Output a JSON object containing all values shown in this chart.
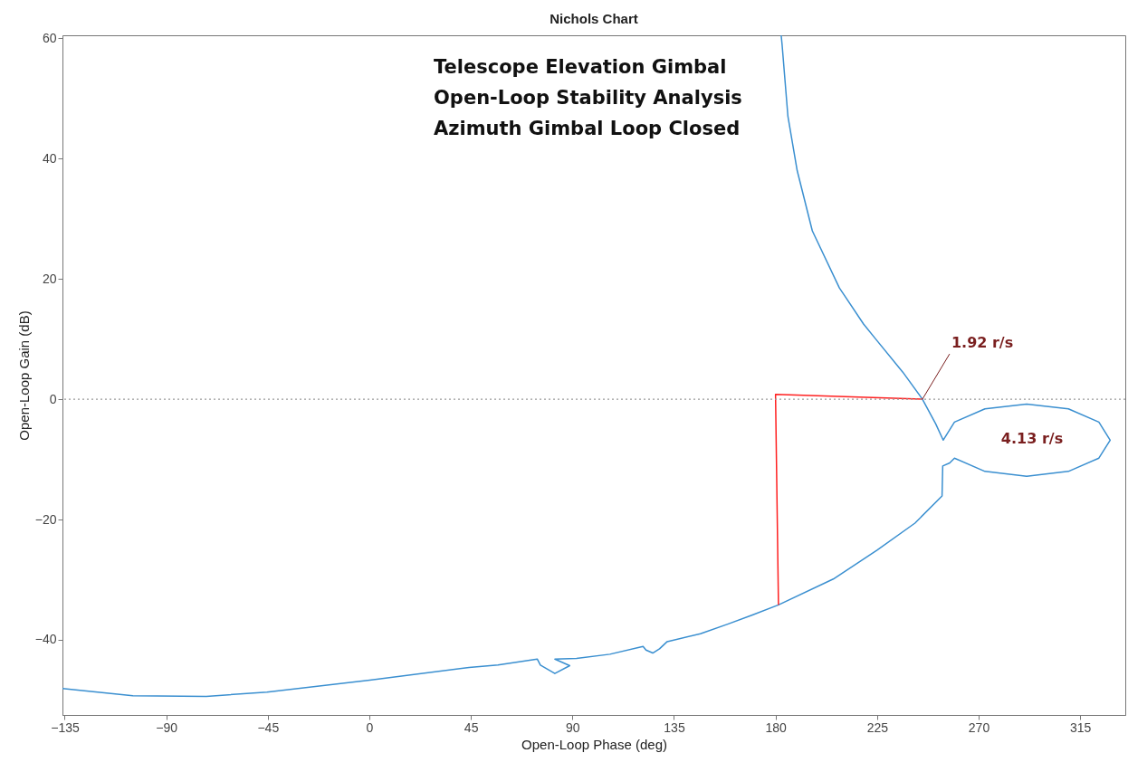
{
  "chart_data": {
    "type": "line",
    "title": "Nichols Chart",
    "xlabel": "Open-Loop Phase (deg)",
    "ylabel": "Open-Loop Gain (dB)",
    "xlim": [
      -136,
      335
    ],
    "ylim": [
      -52.5,
      60.5
    ],
    "xticks": [
      -135,
      -90,
      -45,
      0,
      45,
      90,
      135,
      180,
      225,
      270,
      315
    ],
    "yticks": [
      -40,
      -20,
      0,
      20,
      40,
      60
    ],
    "grid": false,
    "marker": "none",
    "line_style": "solid",
    "series": [
      {
        "color": "#3a8fd0",
        "x": [
          -136,
          -104.8,
          -72.3,
          -45.4,
          0.2,
          44.2,
          57,
          74.4,
          75.8,
          82.2,
          88.8,
          82.2,
          91.8,
          106.6,
          121.3,
          122.6,
          125.6,
          128.6,
          132,
          146.7,
          158.8,
          169.5,
          181.3,
          205.6,
          225,
          241.8,
          253.8,
          254.1,
          257.2,
          259.3,
          272.8,
          291.3,
          309.8,
          323.3,
          328.3,
          323.3,
          309.8,
          291.3,
          272.8,
          259.3,
          254.3,
          251,
          245.1,
          236.4,
          224.4,
          219,
          211,
          208.3,
          196.3,
          189.6,
          185.5,
          182.9,
          182.5
        ],
        "values": [
          -48.1,
          -49.3,
          -49.4,
          -48.7,
          -46.7,
          -44.6,
          -44.2,
          -43.2,
          -44.2,
          -45.6,
          -44.3,
          -43.2,
          -43.1,
          -42.4,
          -41.1,
          -41.7,
          -42.2,
          -41.5,
          -40.3,
          -39,
          -37.4,
          -35.9,
          -34.2,
          -29.9,
          -25.1,
          -20.6,
          -16.1,
          -11.1,
          -10.6,
          -9.8,
          -12,
          -12.8,
          -12,
          -9.8,
          -6.8,
          -3.8,
          -1.6,
          -0.8,
          -1.6,
          -3.8,
          -6.8,
          -4.1,
          0,
          4.5,
          10,
          12.5,
          17,
          18.5,
          28,
          38,
          47,
          59,
          60.5
        ]
      },
      {
        "color": "#ff2020",
        "x": [
          181.3,
          180,
          245.1
        ],
        "values": [
          -34.2,
          0.8,
          0
        ]
      }
    ],
    "ref_lines": [
      {
        "axis": "y",
        "value": 0,
        "color": "#999999",
        "line_style": "dotted"
      }
    ],
    "annotations": [
      "Telescope Elevation Gimbal",
      "Open-Loop Stability Analysis",
      "Azimuth Gimbal Loop Closed",
      {
        "text": "1.92 r/s",
        "x": 245.1,
        "y": 0
      },
      "4.13 r/s"
    ]
  }
}
